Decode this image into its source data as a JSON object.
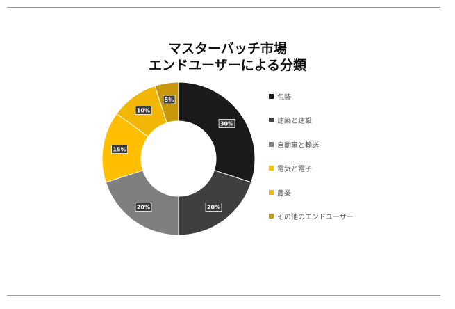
{
  "chart_data": {
    "type": "pie",
    "donut": true,
    "title_lines": [
      "マスターバッチ市場",
      "エンドユーザーによる分類"
    ],
    "categories": [
      "包装",
      "建築と建設",
      "自動車と輸送",
      "電気と電子",
      "農業",
      "その他のエンドユーザー"
    ],
    "values": [
      30,
      20,
      20,
      15,
      10,
      5
    ],
    "labels": [
      "30%",
      "20%",
      "20%",
      "15%",
      "10%",
      "5%"
    ],
    "colors": [
      "#1b1a1a",
      "#3f3f3f",
      "#7f7f7f",
      "#ffbf00",
      "#f2b705",
      "#c9980a"
    ],
    "legend": "right"
  }
}
